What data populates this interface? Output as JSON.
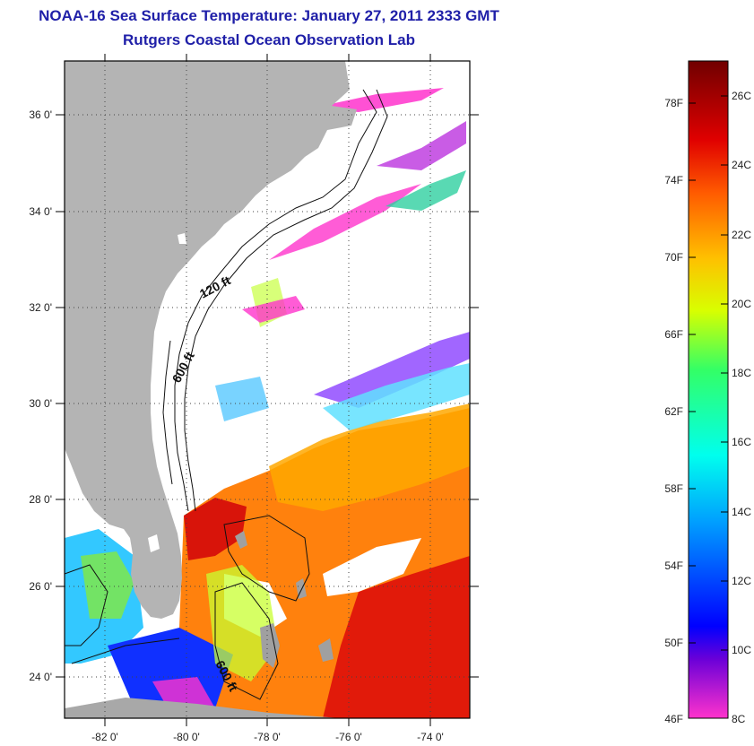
{
  "header": {
    "title": "NOAA-16 Sea Surface Temperature:  January 27, 2011 2333 GMT",
    "subtitle": "Rutgers Coastal Ocean Observation Lab"
  },
  "map": {
    "lat_labels": [
      "36 0'",
      "34 0'",
      "32 0'",
      "30 0'",
      "28 0'",
      "26 0'",
      "24 0'"
    ],
    "lon_labels": [
      "-82 0'",
      "-80 0'",
      "-78 0'",
      "-76 0'",
      "-74 0'"
    ],
    "isobaths": [
      "120 ft",
      "600 ft",
      "600 ft"
    ],
    "land_color": "#b4b4b4",
    "cloud_color": "#ffffff"
  },
  "colorbar": {
    "fahrenheit_labels": [
      "78F",
      "74F",
      "70F",
      "66F",
      "62F",
      "58F",
      "54F",
      "50F",
      "46F"
    ],
    "celsius_labels": [
      "26C",
      "24C",
      "22C",
      "20C",
      "18C",
      "16C",
      "14C",
      "12C",
      "10C",
      "8C"
    ],
    "gradient_colors": [
      "#ff33cc",
      "#6a00d8",
      "#0000ff",
      "#00a0ff",
      "#00ffee",
      "#33ff66",
      "#d8ff00",
      "#ffc000",
      "#ff5a00",
      "#e00000",
      "#700000"
    ]
  }
}
